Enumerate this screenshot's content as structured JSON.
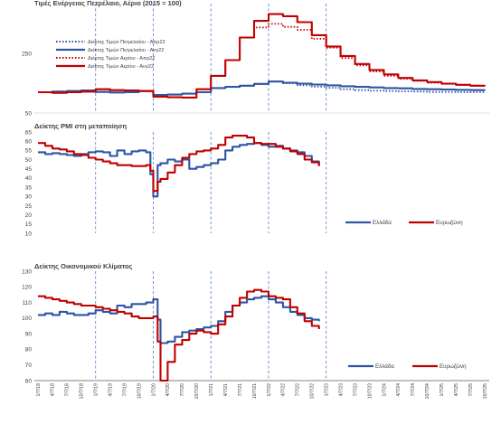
{
  "colors": {
    "blue": "#2E54A4",
    "red": "#C00000",
    "vline": "#4A78C8",
    "axis": "#595959"
  },
  "x_ticks": [
    "1/7/18",
    "4/7/18",
    "7/7/18",
    "10/7/18",
    "1/7/19",
    "4/7/19",
    "7/7/19",
    "10/7/19",
    "1/7/20",
    "4/7/20",
    "7/7/20",
    "10/7/20",
    "1/7/21",
    "4/7/21",
    "7/7/21",
    "10/7/21",
    "1/7/22",
    "4/7/22",
    "7/7/22",
    "10/7/22",
    "1/7/23",
    "4/7/23",
    "7/7/23",
    "10/7/23",
    "1/7/24",
    "4/7/24",
    "7/7/24",
    "10/7/24",
    "1/7/25",
    "4/7/25",
    "7/7/25",
    "10/7/25"
  ],
  "chart_data": [
    {
      "type": "line",
      "title": "Τιμές Ενέργειας Πετρέλαιο, Αέριο (2015 = 100)",
      "yticks": [
        50,
        250
      ],
      "ylim": [
        50,
        400
      ],
      "vertical_lines_at_x": [
        4,
        8,
        12,
        16,
        20
      ],
      "x": [
        0,
        1,
        2,
        3,
        4,
        5,
        6,
        7,
        8,
        9,
        10,
        11,
        12,
        13,
        14,
        15,
        16,
        17,
        18,
        19,
        20,
        21,
        22,
        23,
        24,
        25,
        26,
        27,
        28,
        29,
        30,
        31
      ],
      "series": [
        {
          "name": "Δείκτης Τιμών Πετρελαίου - Απρ22",
          "style": "dotted",
          "color": "#2E54A4",
          "values": [
            120,
            122,
            124,
            126,
            121,
            119,
            120,
            124,
            111,
            112,
            115,
            120,
            134,
            138,
            142,
            148,
            156,
            150,
            143,
            139,
            135,
            130,
            127,
            125,
            124,
            123,
            122,
            121,
            121,
            120,
            120,
            119
          ]
        },
        {
          "name": "Δείκτης Τιμών Πετρελαίου - Αυγ22",
          "style": "solid",
          "color": "#2E54A4",
          "values": [
            120,
            122,
            124,
            126,
            121,
            119,
            120,
            124,
            111,
            112,
            115,
            120,
            134,
            138,
            142,
            148,
            156,
            152,
            149,
            146,
            143,
            140,
            138,
            136,
            134,
            133,
            131,
            130,
            129,
            128,
            127,
            126
          ]
        },
        {
          "name": "Δείκτης Τιμών Αερίου - Απρ22",
          "style": "dotted",
          "color": "#C00000",
          "values": [
            120,
            118,
            120,
            122,
            130,
            127,
            126,
            124,
            105,
            103,
            102,
            130,
            175,
            228,
            304,
            338,
            350,
            340,
            330,
            300,
            270,
            235,
            210,
            190,
            175,
            165,
            158,
            152,
            148,
            145,
            142,
            140
          ]
        },
        {
          "name": "Δείκτης Τιμών Αερίου - Αυγ22",
          "style": "solid",
          "color": "#C00000",
          "values": [
            120,
            118,
            120,
            122,
            130,
            127,
            126,
            124,
            105,
            103,
            102,
            130,
            175,
            228,
            304,
            360,
            383,
            376,
            356,
            312,
            274,
            242,
            215,
            195,
            180,
            168,
            160,
            154,
            149,
            145,
            142,
            140
          ]
        }
      ]
    },
    {
      "type": "line",
      "title": "Δείκτης PMI στη μεταποίηση",
      "yticks": [
        10,
        15,
        20,
        25,
        30,
        35,
        40,
        45,
        50,
        55,
        60,
        65
      ],
      "ylim": [
        10,
        65
      ],
      "vertical_lines_at_x": [
        4,
        8,
        12,
        16,
        20
      ],
      "x": [
        0,
        0.5,
        1,
        1.5,
        2,
        2.5,
        3,
        3.5,
        4,
        4.5,
        5,
        5.5,
        6,
        6.5,
        7,
        7.5,
        7.8,
        8,
        8.3,
        8.5,
        9,
        9.5,
        10,
        10.5,
        11,
        11.5,
        12,
        12.5,
        13,
        13.5,
        14,
        14.5,
        15,
        15.5,
        16,
        16.5,
        17,
        17.5,
        18,
        18.5,
        19,
        19.5
      ],
      "series": [
        {
          "name": "Ελλάδα",
          "color": "#2E54A4",
          "values": [
            54,
            53,
            53.5,
            53,
            52.5,
            52,
            53,
            54,
            54.5,
            54,
            52,
            55,
            53,
            54.5,
            55,
            54,
            42,
            30,
            47,
            48,
            50,
            49,
            50,
            45,
            46,
            47,
            48,
            50,
            55,
            57,
            58,
            58.5,
            59,
            58,
            57,
            57.5,
            56,
            55,
            54,
            52,
            49,
            47
          ]
        },
        {
          "name": "Ευρωζώνη",
          "color": "#C00000",
          "values": [
            59,
            57.5,
            56,
            55.5,
            54.5,
            53,
            52.5,
            51,
            50,
            49,
            48,
            47,
            47,
            46.5,
            46.5,
            47,
            44,
            33,
            38,
            39.5,
            43,
            47,
            51,
            53,
            54.5,
            55,
            56,
            58,
            62,
            63,
            63,
            62,
            59,
            58.5,
            58.5,
            57,
            56,
            54.5,
            53,
            50,
            48.5,
            46.5
          ]
        }
      ]
    },
    {
      "type": "line",
      "title": "Δείκτης Οικονομικού Κλίματος",
      "yticks": [
        60,
        70,
        80,
        90,
        100,
        110,
        120,
        130
      ],
      "ylim": [
        60,
        130
      ],
      "vertical_lines_at_x": [
        4,
        8,
        12,
        16,
        20
      ],
      "x": [
        0,
        0.5,
        1,
        1.5,
        2,
        2.5,
        3,
        3.5,
        4,
        4.5,
        5,
        5.5,
        6,
        6.5,
        7,
        7.5,
        8,
        8.3,
        8.5,
        9,
        9.5,
        10,
        10.5,
        11,
        11.5,
        12,
        12.5,
        13,
        13.5,
        14,
        14.5,
        15,
        15.5,
        16,
        16.5,
        17,
        17.5,
        18,
        18.5,
        19,
        19.5
      ],
      "series": [
        {
          "name": "Ελλάδα",
          "color": "#2E54A4",
          "values": [
            102,
            103,
            102,
            104,
            103,
            102,
            102,
            103,
            105,
            104,
            103,
            108,
            107,
            109,
            109,
            110,
            112,
            99,
            84,
            85,
            88,
            91,
            92,
            93,
            94,
            95,
            98,
            104,
            108,
            110,
            112,
            113,
            114,
            112,
            110,
            107,
            104,
            102,
            100,
            99,
            98
          ]
        },
        {
          "name": "Ευρωζώνη",
          "color": "#C00000",
          "values": [
            114,
            113,
            112,
            111,
            110,
            109,
            108,
            108,
            107,
            106,
            105,
            104,
            103,
            101,
            100,
            100,
            101,
            85,
            60,
            72,
            83,
            86,
            90,
            92,
            91,
            90,
            96,
            101,
            108,
            113,
            117,
            118,
            117,
            114,
            113,
            112,
            107,
            103,
            98,
            95,
            93
          ]
        }
      ]
    }
  ]
}
